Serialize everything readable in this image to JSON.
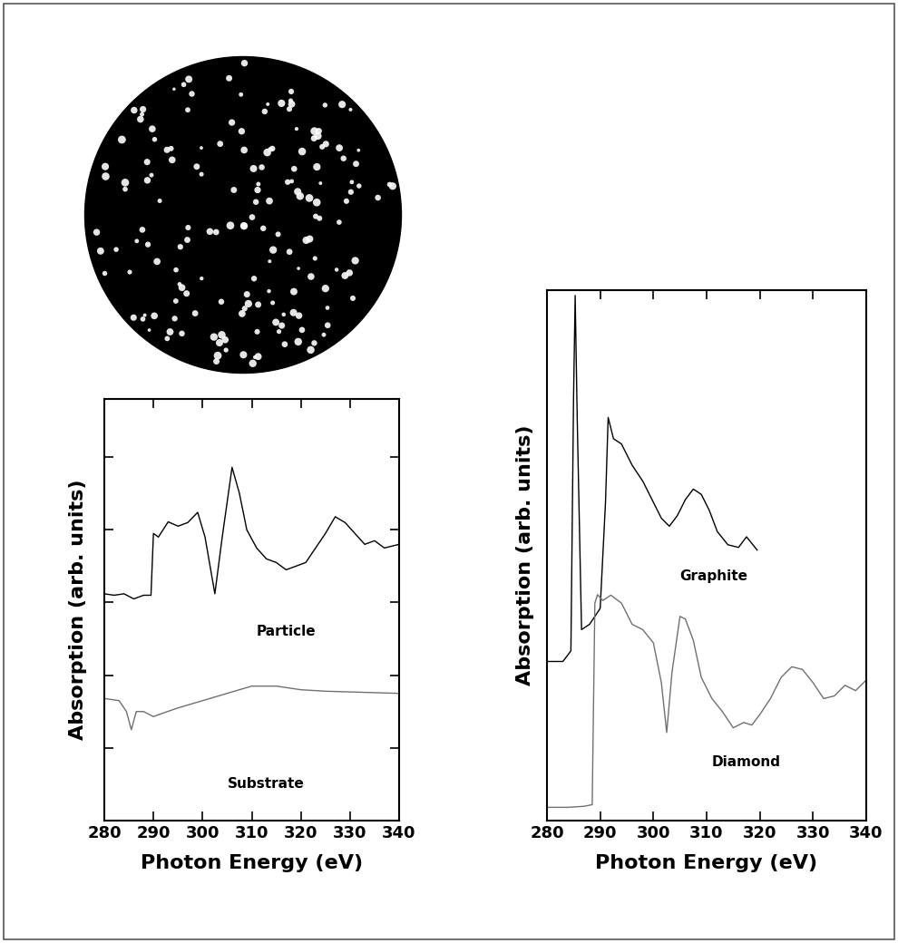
{
  "chart_data": [
    {
      "type": "line",
      "x_label": "Photon Energy (eV)",
      "y_label": "Absorption (arb. units)",
      "xlim": [
        280,
        340
      ],
      "xticks": [
        280,
        290,
        300,
        310,
        320,
        330,
        340
      ],
      "ylim": [
        0,
        5.8
      ],
      "yticks": [
        1,
        2,
        3,
        4,
        5
      ],
      "tick_labels": "x",
      "series": [
        {
          "name": "Particle",
          "color": "#000000",
          "x": [
            280,
            282,
            284,
            286,
            288,
            289.5,
            290,
            291,
            293,
            295,
            297,
            299,
            300.5,
            302.5,
            304,
            306,
            307.5,
            309,
            311,
            313,
            315,
            317,
            319,
            321,
            323,
            325,
            327,
            329,
            331,
            333,
            335,
            337,
            340
          ],
          "values": [
            3.12,
            3.1,
            3.12,
            3.05,
            3.1,
            3.1,
            3.95,
            3.9,
            4.11,
            4.05,
            4.1,
            4.24,
            3.9,
            3.12,
            3.9,
            4.86,
            4.5,
            4.0,
            3.75,
            3.6,
            3.55,
            3.45,
            3.5,
            3.55,
            3.75,
            3.95,
            4.18,
            4.1,
            3.95,
            3.8,
            3.85,
            3.75,
            3.8
          ]
        },
        {
          "name": "Substrate",
          "color": "#707070",
          "x": [
            280,
            283,
            284.5,
            285.5,
            286.5,
            288,
            290,
            292,
            295,
            300,
            305,
            310,
            315,
            320,
            325,
            330,
            335,
            340
          ],
          "values": [
            1.68,
            1.65,
            1.5,
            1.25,
            1.5,
            1.5,
            1.43,
            1.48,
            1.55,
            1.65,
            1.75,
            1.85,
            1.85,
            1.8,
            1.78,
            1.77,
            1.76,
            1.75
          ]
        }
      ],
      "annotations": [
        {
          "text": "Particle",
          "x": 311,
          "y": 2.6
        },
        {
          "text": "Substrate",
          "x": 305,
          "y": 0.5
        }
      ]
    },
    {
      "type": "line",
      "x_label": "Photon Energy (eV)",
      "y_label": "Absorption (arb. units)",
      "xlim": [
        280,
        340
      ],
      "xticks": [
        280,
        290,
        300,
        310,
        320,
        330,
        340
      ],
      "ylim": [
        0,
        10
      ],
      "yticks": [],
      "tick_labels": "x",
      "series": [
        {
          "name": "Graphite",
          "color": "#000000",
          "x": [
            280,
            283,
            284.5,
            285,
            285.3,
            285.7,
            286.5,
            288,
            290,
            291,
            291.5,
            292.5,
            294,
            296,
            298,
            300,
            301.5,
            303,
            304.5,
            306,
            307.5,
            309,
            310.5,
            312,
            314,
            316,
            317.5,
            319.5
          ],
          "values": [
            3.0,
            3.0,
            3.2,
            8.0,
            9.9,
            7.5,
            3.6,
            3.7,
            4.0,
            6.0,
            7.6,
            7.2,
            7.1,
            6.7,
            6.4,
            6.0,
            5.7,
            5.55,
            5.75,
            6.05,
            6.25,
            6.15,
            5.85,
            5.45,
            5.2,
            5.15,
            5.35,
            5.1
          ]
        },
        {
          "name": "Diamond",
          "color": "#707070",
          "x": [
            280,
            284,
            287,
            288.5,
            289,
            289.5,
            290.5,
            292,
            294,
            296,
            298,
            300,
            301.5,
            302.5,
            303.5,
            305,
            306,
            307.5,
            309,
            311,
            313,
            315,
            317,
            318.5,
            320,
            322,
            324,
            326,
            328,
            330,
            332,
            334,
            336,
            338,
            340
          ],
          "values": [
            0.25,
            0.25,
            0.27,
            0.3,
            4.1,
            4.26,
            4.15,
            4.25,
            4.1,
            3.7,
            3.6,
            3.35,
            2.6,
            1.66,
            2.8,
            3.85,
            3.8,
            3.4,
            2.7,
            2.3,
            2.05,
            1.75,
            1.85,
            1.8,
            2.0,
            2.3,
            2.7,
            2.9,
            2.85,
            2.6,
            2.3,
            2.35,
            2.55,
            2.45,
            2.65
          ]
        }
      ],
      "annotations": [
        {
          "text": "Graphite",
          "x": 305,
          "y": 4.6
        },
        {
          "text": "Diamond",
          "x": 311,
          "y": 1.1
        }
      ]
    }
  ]
}
